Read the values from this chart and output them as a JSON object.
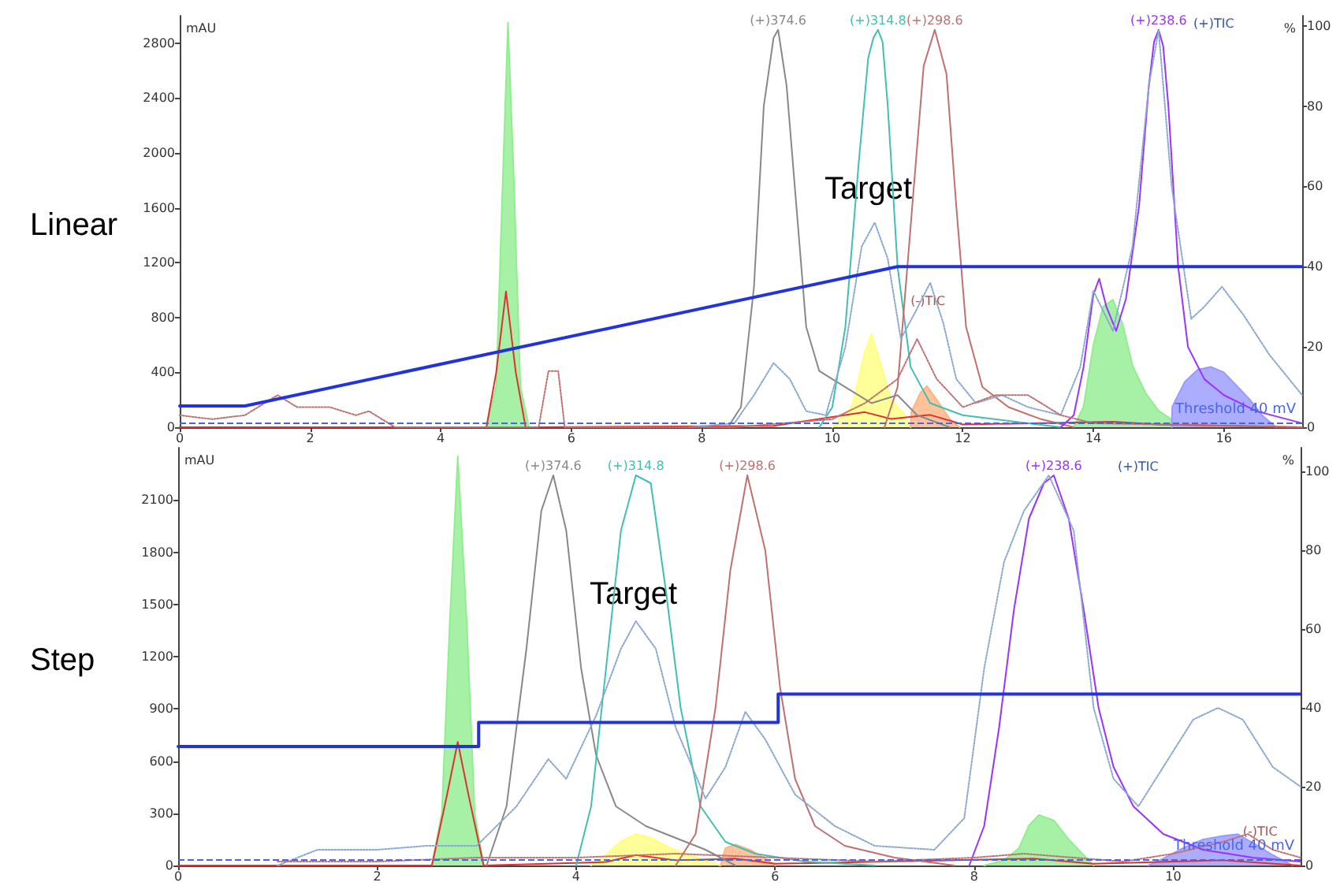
{
  "chart_data": [
    {
      "type": "line",
      "title": "Linear",
      "ylabel": "mAU",
      "y2label": "%",
      "marker": "none",
      "grid": false,
      "xlim": [
        0,
        17.2
      ],
      "xticks": [
        0,
        2,
        4,
        6,
        8,
        10,
        12,
        14,
        16
      ],
      "ylim": [
        0,
        3000
      ],
      "yticks": [
        0,
        400,
        800,
        1200,
        1600,
        2000,
        2400,
        2800
      ],
      "y2lim": [
        0,
        102.5
      ],
      "y2ticks": [
        0,
        20,
        40,
        60,
        80,
        100
      ],
      "ref_lines": [
        {
          "axis": "y",
          "value": 30,
          "label": "Threshold 40 mV",
          "color": "#4466ee",
          "line_style": "dashed"
        }
      ],
      "annotations": [
        "Target",
        "(+)TIC",
        {
          "text": "(-)TIC",
          "x": 11.2,
          "y": 920
        }
      ],
      "series": [
        {
          "type": "area",
          "color": "#90ee90",
          "x": [
            4.7,
            4.85,
            4.95,
            5.03,
            5.12,
            5.22,
            5.35
          ],
          "values": [
            0,
            300,
            1800,
            2950,
            1800,
            300,
            0
          ]
        },
        {
          "type": "area",
          "color": "#ffff80",
          "x": [
            10.0,
            10.3,
            10.5,
            10.6,
            10.75,
            10.9,
            11.1,
            11.2
          ],
          "values": [
            0,
            150,
            550,
            680,
            450,
            200,
            100,
            0
          ]
        },
        {
          "type": "area",
          "color": "#ffb380",
          "x": [
            11.2,
            11.21,
            11.35,
            11.45,
            11.6,
            11.8,
            11.95
          ],
          "values": [
            0,
            110,
            250,
            300,
            200,
            60,
            0
          ]
        },
        {
          "type": "area",
          "color": "#90ee90",
          "x": [
            13.7,
            13.85,
            14.0,
            14.15,
            14.3,
            14.45,
            14.6,
            14.8,
            15.0,
            15.19,
            15.2
          ],
          "values": [
            0,
            150,
            600,
            880,
            930,
            750,
            450,
            250,
            120,
            60,
            0
          ]
        },
        {
          "type": "area",
          "color": "#9999ff",
          "x": [
            15.2,
            15.21,
            15.4,
            15.6,
            15.8,
            16.0,
            16.2,
            16.4,
            16.6,
            16.8
          ],
          "values": [
            0,
            150,
            330,
            420,
            440,
            400,
            300,
            200,
            80,
            0
          ]
        },
        {
          "type": "line",
          "color": "#e03030",
          "x": [
            0,
            4.7,
            4.85,
            5.0,
            5.15,
            5.3,
            9.1,
            10.5,
            10.9,
            11.5,
            12,
            14.3,
            15,
            17.2
          ],
          "values": [
            0,
            0,
            400,
            990,
            400,
            0,
            10,
            110,
            60,
            90,
            20,
            40,
            20,
            0
          ]
        },
        {
          "type": "line",
          "axis": "y2",
          "color": "#888888",
          "name": "(+)374.6",
          "x": [
            8.4,
            8.6,
            8.8,
            8.95,
            9.1,
            9.17,
            9.3,
            9.45,
            9.6,
            9.8,
            10.2,
            10.6,
            11.0,
            11.3,
            11.8
          ],
          "values": [
            0,
            5,
            35,
            80,
            97,
            99,
            85,
            55,
            25,
            14,
            10,
            6,
            8,
            3,
            0
          ]
        },
        {
          "type": "line",
          "axis": "y2",
          "color": "#40c0b0",
          "name": "(+)314.8",
          "x": [
            9.8,
            10.0,
            10.2,
            10.4,
            10.55,
            10.63,
            10.7,
            10.77,
            10.85,
            11.0,
            11.2,
            11.5,
            12,
            13,
            13.5
          ],
          "values": [
            0,
            5,
            25,
            65,
            92,
            97,
            99,
            96,
            80,
            40,
            15,
            6,
            3,
            1,
            0
          ]
        },
        {
          "type": "line",
          "axis": "y2",
          "color": "#c07070",
          "name": "(+)298.6",
          "x": [
            10.8,
            11.0,
            11.2,
            11.4,
            11.57,
            11.75,
            11.9,
            12.05,
            12.3,
            12.7,
            13.2,
            13.7
          ],
          "values": [
            0,
            10,
            50,
            90,
            99,
            88,
            55,
            25,
            10,
            5,
            2,
            0
          ]
        },
        {
          "type": "line",
          "axis": "y2",
          "color": "#9933ff",
          "name": "(+)238.6",
          "x": [
            13.5,
            13.7,
            13.85,
            14.0,
            14.09,
            14.2,
            14.35,
            14.5,
            14.7,
            14.85,
            14.93,
            15.0,
            15.07,
            15.15,
            15.3,
            15.45,
            15.7,
            16,
            16.5,
            17.2
          ],
          "values": [
            0,
            3,
            15,
            33,
            37,
            30,
            24,
            32,
            55,
            85,
            96,
            99,
            95,
            80,
            40,
            20,
            12,
            8,
            4,
            1
          ]
        },
        {
          "type": "line",
          "axis": "y2",
          "color": "#8aa8d0",
          "line_style": "dotted",
          "x": [
            7.8,
            8.5,
            8.8,
            9.1,
            9.35,
            9.6,
            9.9,
            10.2,
            10.45,
            10.65,
            10.85,
            11.05,
            11.25,
            11.5,
            11.7,
            11.9,
            12.2,
            12.6,
            13,
            13.5,
            13.8,
            14.0,
            14.3,
            14.6,
            14.85,
            15.0,
            15.2,
            15.5,
            15.7,
            15.97,
            16.3,
            16.7,
            17.2
          ],
          "values": [
            0,
            1,
            8,
            16,
            12,
            4,
            3,
            20,
            45,
            51,
            42,
            22,
            28,
            36,
            26,
            12,
            6,
            8,
            5,
            3,
            15,
            34,
            24,
            45,
            85,
            99,
            60,
            27,
            30,
            35,
            28,
            18,
            8
          ]
        },
        {
          "type": "line",
          "axis": "y2",
          "color": "#c07070",
          "line_style": "dotted",
          "x": [
            0,
            0.5,
            1.0,
            1.5,
            1.8,
            2.3,
            2.7,
            2.9,
            3.3,
            5.5,
            5.65,
            5.8,
            5.9,
            8.5,
            10.0,
            10.5,
            11.0,
            11.3,
            11.6,
            12.0,
            12.5,
            13,
            13.5,
            14,
            17.2
          ],
          "values": [
            3,
            2,
            3,
            8,
            5,
            5,
            3,
            4,
            0,
            0,
            14,
            14,
            0,
            0,
            2,
            6,
            12,
            22,
            12,
            5,
            8,
            8,
            3,
            1,
            0
          ]
        },
        {
          "type": "line",
          "axis": "y2",
          "color": "#2233dd",
          "x": [
            0,
            1,
            11,
            17.2
          ],
          "values": [
            5.3,
            5.3,
            40,
            40
          ]
        }
      ]
    },
    {
      "type": "line",
      "title": "Step",
      "ylabel": "mAU",
      "y2label": "%",
      "marker": "none",
      "grid": false,
      "xlim": [
        0,
        11.28
      ],
      "xticks": [
        0,
        2,
        4,
        6,
        8,
        10
      ],
      "ylim": [
        0,
        2400
      ],
      "yticks": [
        0,
        300,
        600,
        900,
        1200,
        1500,
        1800,
        2100
      ],
      "y2lim": [
        0,
        106
      ],
      "y2ticks": [
        0,
        20,
        40,
        60,
        80,
        100
      ],
      "ref_lines": [
        {
          "axis": "y",
          "value": 30,
          "label": "Threshold 40 mV",
          "color": "#4466ee",
          "line_style": "dashed"
        }
      ],
      "annotations": [
        "Target",
        "(+)TIC",
        {
          "text": "(-)TIC",
          "x": 10.7,
          "y": 196
        }
      ],
      "series": [
        {
          "type": "area",
          "color": "#90ee90",
          "x": [
            2.55,
            2.65,
            2.73,
            2.81,
            2.9,
            2.98,
            3.07
          ],
          "values": [
            0,
            300,
            1400,
            2350,
            1400,
            300,
            0
          ]
        },
        {
          "type": "area",
          "color": "#ffff80",
          "x": [
            4.15,
            4.3,
            4.45,
            4.6,
            4.75,
            4.95,
            5.2,
            5.45
          ],
          "values": [
            0,
            60,
            140,
            180,
            160,
            100,
            50,
            0
          ]
        },
        {
          "type": "area",
          "color": "#ffb380",
          "x": [
            5.45,
            5.5,
            5.6,
            5.75,
            5.9,
            6.0
          ],
          "values": [
            0,
            100,
            120,
            90,
            40,
            0
          ]
        },
        {
          "type": "area",
          "color": "#90ee90",
          "x": [
            8.1,
            8.3,
            8.45,
            8.55,
            8.65,
            8.8,
            8.95,
            9.1,
            9.2
          ],
          "values": [
            0,
            30,
            100,
            230,
            290,
            260,
            150,
            60,
            0
          ]
        },
        {
          "type": "area",
          "color": "#9999ff",
          "x": [
            9.75,
            9.9,
            10.1,
            10.3,
            10.5,
            10.65,
            10.8,
            11.0,
            11.2
          ],
          "values": [
            0,
            40,
            100,
            150,
            170,
            180,
            130,
            60,
            0
          ]
        },
        {
          "type": "line",
          "color": "#e03030",
          "x": [
            0,
            2.55,
            2.7,
            2.81,
            2.92,
            3.07,
            4.3,
            4.6,
            5.0,
            5.6,
            6,
            8.6,
            9.2,
            10.5,
            11.28
          ],
          "values": [
            0,
            0,
            400,
            710,
            400,
            0,
            20,
            60,
            30,
            40,
            10,
            40,
            10,
            30,
            0
          ]
        },
        {
          "type": "line",
          "axis": "y2",
          "color": "#888888",
          "name": "(+)374.6",
          "x": [
            3.1,
            3.3,
            3.5,
            3.65,
            3.77,
            3.9,
            4.05,
            4.2,
            4.4,
            4.7,
            5.0,
            5.3,
            5.6
          ],
          "values": [
            0,
            15,
            55,
            90,
            99,
            85,
            50,
            28,
            15,
            10,
            7,
            4,
            0
          ]
        },
        {
          "type": "line",
          "axis": "y2",
          "color": "#40c0b0",
          "name": "(+)314.8",
          "x": [
            4.0,
            4.15,
            4.3,
            4.45,
            4.6,
            4.75,
            4.9,
            5.05,
            5.25,
            5.5,
            5.8,
            6.3,
            7
          ],
          "values": [
            0,
            15,
            50,
            85,
            99,
            97,
            70,
            40,
            15,
            6,
            3,
            1,
            0
          ]
        },
        {
          "type": "line",
          "axis": "y2",
          "color": "#c07070",
          "name": "(+)298.6",
          "x": [
            5.0,
            5.2,
            5.4,
            5.55,
            5.72,
            5.9,
            6.05,
            6.2,
            6.4,
            6.7,
            7.2,
            7.8
          ],
          "values": [
            0,
            8,
            40,
            75,
            99,
            80,
            45,
            22,
            10,
            5,
            2,
            0
          ]
        },
        {
          "type": "line",
          "axis": "y2",
          "color": "#9933ff",
          "name": "(+)238.6",
          "x": [
            7.95,
            8.1,
            8.25,
            8.4,
            8.55,
            8.7,
            8.8,
            8.95,
            9.1,
            9.25,
            9.4,
            9.6,
            9.9,
            10.3,
            10.8,
            11.28
          ],
          "values": [
            0,
            10,
            35,
            65,
            88,
            97,
            99,
            88,
            65,
            40,
            25,
            15,
            8,
            4,
            2,
            1
          ]
        },
        {
          "type": "line",
          "axis": "y2",
          "color": "#8aa8d0",
          "line_style": "dotted",
          "x": [
            1.0,
            1.4,
            2.0,
            2.5,
            3.0,
            3.4,
            3.72,
            3.9,
            4.2,
            4.45,
            4.6,
            4.8,
            5.0,
            5.3,
            5.5,
            5.7,
            5.9,
            6.2,
            6.6,
            7.0,
            7.6,
            7.9,
            8.1,
            8.3,
            8.5,
            8.75,
            9.0,
            9.2,
            9.4,
            9.65,
            9.9,
            10.2,
            10.45,
            10.7,
            11.0,
            11.28
          ],
          "values": [
            0,
            4,
            4,
            5,
            5,
            15,
            27,
            22,
            38,
            55,
            62,
            55,
            35,
            17,
            25,
            39,
            32,
            18,
            10,
            5,
            4,
            12,
            50,
            77,
            90,
            99,
            85,
            40,
            22,
            15,
            25,
            37,
            40,
            37,
            25,
            20
          ]
        },
        {
          "type": "line",
          "axis": "y2",
          "color": "#c07070",
          "line_style": "dotted",
          "x": [
            1,
            2,
            3,
            4,
            5,
            6,
            7,
            8,
            8.5,
            9,
            9.5,
            10,
            10.5,
            10.75,
            11,
            11.28
          ],
          "values": [
            1,
            1,
            2,
            2,
            3,
            2,
            1,
            2,
            3,
            2,
            1,
            3,
            6,
            8,
            4,
            2
          ]
        },
        {
          "type": "line",
          "axis": "y2",
          "color": "#2233dd",
          "x": [
            0,
            3.02,
            3.02,
            6.03,
            6.03,
            11.28
          ],
          "values": [
            30.2,
            30.2,
            36.3,
            36.3,
            43.5,
            43.5
          ]
        }
      ]
    }
  ]
}
